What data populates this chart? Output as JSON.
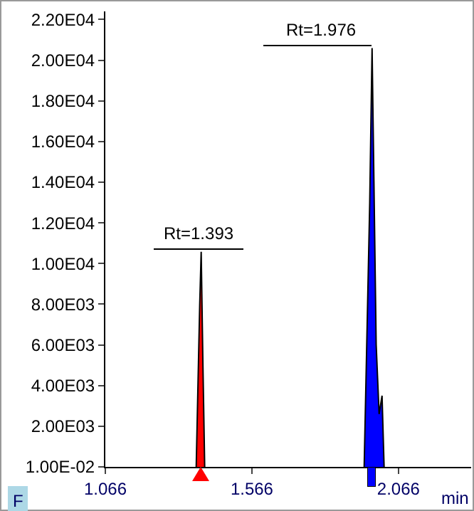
{
  "chart_data": {
    "type": "area",
    "xlabel": "min",
    "series": [
      {
        "color": "#ff0000",
        "x": [
          1.376,
          1.388,
          1.393,
          1.399,
          1.405
        ],
        "values": [
          0,
          8000,
          10580,
          5000,
          0
        ]
      },
      {
        "color": "#0000ff",
        "x": [
          1.949,
          1.968,
          1.976,
          1.99,
          2.0,
          2.01,
          2.017
        ],
        "values": [
          0,
          13000,
          20600,
          6000,
          2600,
          3500,
          0
        ]
      }
    ],
    "annotations": [
      {
        "text": "Rt=1.393",
        "x": 1.393,
        "y": 10580
      },
      {
        "text": "Rt=1.976",
        "x": 1.976,
        "y": 20600
      },
      "F"
    ],
    "xlim": [
      1.066,
      2.314
    ],
    "xticks": [
      1.066,
      1.566,
      2.066
    ],
    "ylim": [
      0,
      22400
    ],
    "yticks": [
      {
        "value": 0.01,
        "label": "1.00E-02"
      },
      {
        "value": 2000,
        "label": "2.00E03"
      },
      {
        "value": 4000,
        "label": "4.00E03"
      },
      {
        "value": 6000,
        "label": "6.00E03"
      },
      {
        "value": 8000,
        "label": "8.00E03"
      },
      {
        "value": 10000,
        "label": "1.00E04"
      },
      {
        "value": 12000,
        "label": "1.20E04"
      },
      {
        "value": 14000,
        "label": "1.40E04"
      },
      {
        "value": 16000,
        "label": "1.60E04"
      },
      {
        "value": 18000,
        "label": "1.80E04"
      },
      {
        "value": 20000,
        "label": "2.00E04"
      },
      {
        "value": 22000,
        "label": "2.20E04"
      }
    ],
    "grid": false
  }
}
